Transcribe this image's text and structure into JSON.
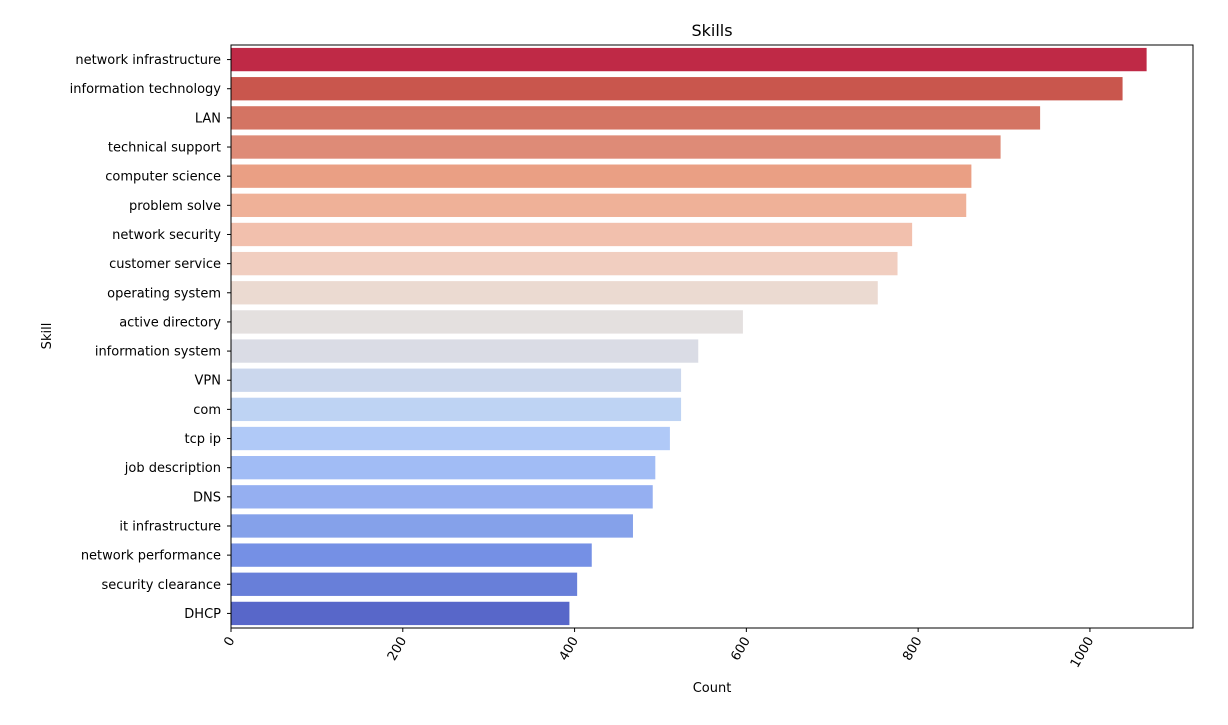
{
  "chart_data": {
    "type": "bar",
    "orientation": "horizontal",
    "title": "Skills",
    "xlabel": "Count",
    "ylabel": "Skill",
    "xlim": [
      0,
      1120
    ],
    "xticks": [
      0,
      200,
      400,
      600,
      800,
      1000
    ],
    "grid": false,
    "legend": "none",
    "categories": [
      "network infrastructure",
      "information technology",
      "LAN",
      "technical support",
      "computer science",
      "problem solve",
      "network security",
      "customer service",
      "operating system",
      "active directory",
      "information system",
      "VPN",
      "com",
      "tcp ip",
      "job description",
      "DNS",
      "it infrastructure",
      "network performance",
      "security clearance",
      "DHCP"
    ],
    "values": [
      1066,
      1038,
      942,
      896,
      862,
      856,
      793,
      776,
      753,
      596,
      544,
      524,
      524,
      511,
      494,
      491,
      468,
      420,
      403,
      394
    ],
    "colors": [
      "#b40426",
      "#c0382e",
      "#cc5c48",
      "#d8775f",
      "#e68e6e",
      "#eca386",
      "#f0b59f",
      "#eec6b5",
      "#e8d3c9",
      "#dfdbd9",
      "#d3d6e0",
      "#c2d0ea",
      "#b3cbf1",
      "#a2c0f6",
      "#91b0f3",
      "#82a1ef",
      "#7090e6",
      "#5d7ce0",
      "#4d69d2",
      "#3b4cc0"
    ],
    "bar_opacity": 0.85
  }
}
